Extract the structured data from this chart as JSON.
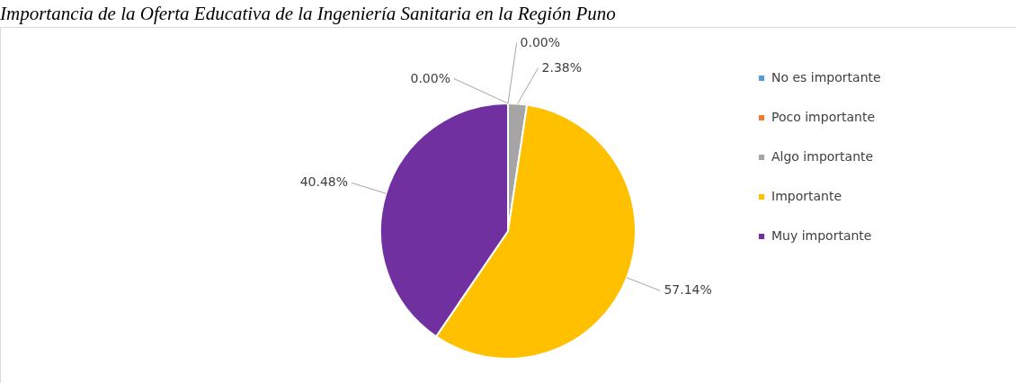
{
  "chart_data": {
    "type": "pie",
    "title": "Importancia de la Oferta Educativa de la Ingeniería Sanitaria en la Región Puno",
    "categories": [
      "No es importante",
      "Poco importante",
      "Algo importante",
      "Importante",
      "Muy importante"
    ],
    "values": [
      0.0,
      0.0,
      2.38,
      57.14,
      40.48
    ],
    "colors": [
      "#5b9bd5",
      "#ed7d31",
      "#a5a5a5",
      "#ffc000",
      "#7030a0"
    ],
    "value_labels": [
      "0.00%",
      "0.00%",
      "2.38%",
      "57.14%",
      "40.48%"
    ],
    "legend": "right"
  }
}
